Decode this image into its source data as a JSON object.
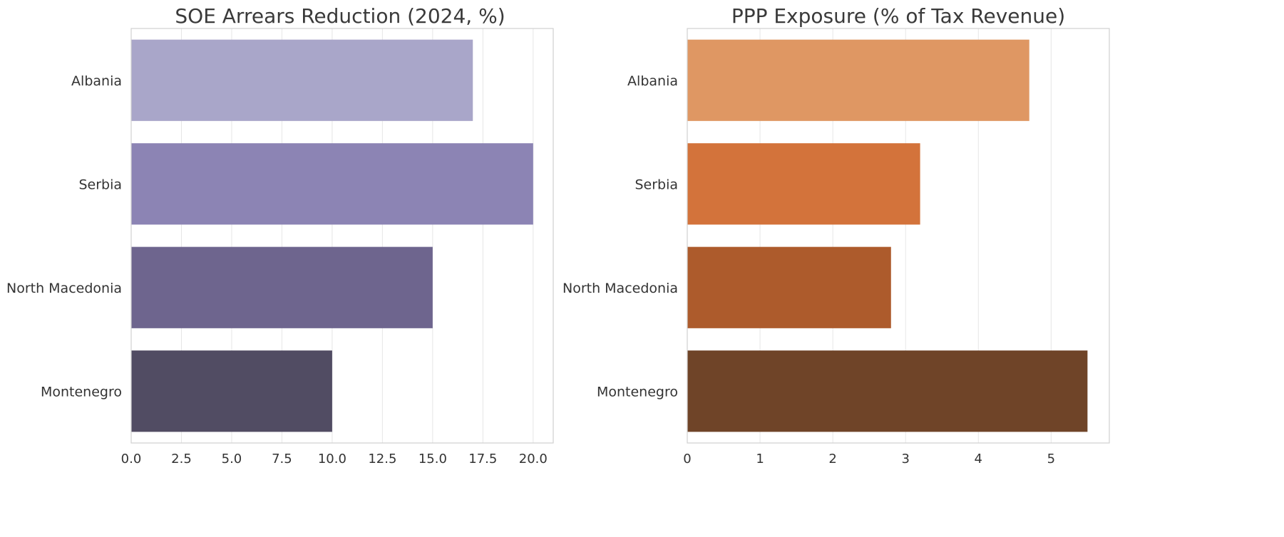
{
  "chart_data": [
    {
      "type": "bar",
      "orientation": "horizontal",
      "title": "SOE Arrears Reduction (2024, %)",
      "xlabel": "",
      "ylabel": "",
      "categories": [
        "Albania",
        "Serbia",
        "North Macedonia",
        "Montenegro"
      ],
      "values": [
        17,
        20,
        15,
        10
      ],
      "colors": [
        "#a9a6c9",
        "#8c84b4",
        "#6e658e",
        "#514c63"
      ],
      "xlim": [
        0,
        21
      ],
      "xticks": [
        0,
        2.5,
        5,
        7.5,
        10,
        12.5,
        15,
        17.5,
        20
      ],
      "xtick_labels": [
        "0.0",
        "2.5",
        "5.0",
        "7.5",
        "10.0",
        "12.5",
        "15.0",
        "17.5",
        "20.0"
      ],
      "grid": true
    },
    {
      "type": "bar",
      "orientation": "horizontal",
      "title": "PPP Exposure (% of Tax Revenue)",
      "xlabel": "",
      "ylabel": "",
      "categories": [
        "Albania",
        "Serbia",
        "North Macedonia",
        "Montenegro"
      ],
      "values": [
        4.7,
        3.2,
        2.8,
        5.5
      ],
      "colors": [
        "#df9763",
        "#d3733b",
        "#ad5b2c",
        "#6f4428"
      ],
      "xlim": [
        0,
        5.8
      ],
      "xticks": [
        0,
        1,
        2,
        3,
        4,
        5
      ],
      "xtick_labels": [
        "0",
        "1",
        "2",
        "3",
        "4",
        "5"
      ],
      "grid": true
    }
  ]
}
